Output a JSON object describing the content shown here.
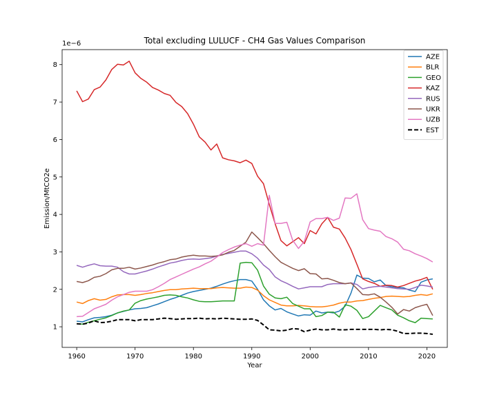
{
  "chart_data": {
    "type": "line",
    "title": "Total excluding LULUCF - CH4 Gas Values Comparison",
    "xlabel": "Year",
    "ylabel": "Emission/MtCO2e",
    "scale_label": "1e−6",
    "xlim": [
      1957.5,
      2023.5
    ],
    "ylim": [
      0.45,
      8.4
    ],
    "xticks": [
      1960,
      1970,
      1980,
      1990,
      2000,
      2010,
      2020
    ],
    "yticks": [
      1,
      2,
      3,
      4,
      5,
      6,
      7,
      8
    ],
    "legend_position": "top-right",
    "x": [
      1960,
      1961,
      1962,
      1963,
      1964,
      1965,
      1966,
      1967,
      1968,
      1969,
      1970,
      1971,
      1972,
      1973,
      1974,
      1975,
      1976,
      1977,
      1978,
      1979,
      1980,
      1981,
      1982,
      1983,
      1984,
      1985,
      1986,
      1987,
      1988,
      1989,
      1990,
      1991,
      1992,
      1993,
      1994,
      1995,
      1996,
      1997,
      1998,
      1999,
      2000,
      2001,
      2002,
      2003,
      2004,
      2005,
      2006,
      2007,
      2008,
      2009,
      2010,
      2011,
      2012,
      2013,
      2014,
      2015,
      2016,
      2017,
      2018,
      2019,
      2020,
      2021
    ],
    "series": [
      {
        "name": "AZE",
        "color": "#1f77b4",
        "dashed": false,
        "values": [
          1.15,
          1.13,
          1.19,
          1.24,
          1.25,
          1.27,
          1.31,
          1.37,
          1.41,
          1.45,
          1.48,
          1.49,
          1.51,
          1.56,
          1.61,
          1.67,
          1.73,
          1.78,
          1.84,
          1.9,
          1.94,
          1.97,
          2.0,
          2.03,
          2.08,
          2.14,
          2.19,
          2.23,
          2.26,
          2.26,
          2.22,
          2.0,
          1.72,
          1.56,
          1.45,
          1.49,
          1.4,
          1.34,
          1.29,
          1.32,
          1.31,
          1.42,
          1.37,
          1.39,
          1.37,
          1.42,
          1.55,
          1.9,
          2.38,
          2.3,
          2.29,
          2.2,
          2.25,
          2.1,
          2.07,
          2.05,
          2.04,
          1.98,
          1.94,
          2.19,
          2.25,
          2.28
        ]
      },
      {
        "name": "BLR",
        "color": "#ff7f0e",
        "dashed": false,
        "values": [
          1.66,
          1.62,
          1.7,
          1.75,
          1.71,
          1.73,
          1.8,
          1.85,
          1.86,
          1.86,
          1.84,
          1.86,
          1.89,
          1.91,
          1.94,
          1.97,
          1.99,
          1.99,
          2.01,
          2.02,
          2.03,
          2.02,
          2.02,
          2.02,
          2.04,
          2.05,
          2.04,
          2.03,
          2.03,
          2.06,
          2.05,
          1.98,
          1.83,
          1.72,
          1.65,
          1.58,
          1.56,
          1.56,
          1.57,
          1.56,
          1.54,
          1.53,
          1.53,
          1.55,
          1.58,
          1.63,
          1.66,
          1.66,
          1.69,
          1.7,
          1.73,
          1.76,
          1.78,
          1.81,
          1.82,
          1.81,
          1.8,
          1.81,
          1.84,
          1.86,
          1.84,
          1.88
        ]
      },
      {
        "name": "GEO",
        "color": "#2ca02c",
        "dashed": false,
        "values": [
          1.08,
          1.07,
          1.12,
          1.16,
          1.2,
          1.24,
          1.3,
          1.37,
          1.42,
          1.45,
          1.63,
          1.7,
          1.74,
          1.77,
          1.8,
          1.84,
          1.85,
          1.84,
          1.8,
          1.77,
          1.72,
          1.68,
          1.67,
          1.67,
          1.68,
          1.69,
          1.69,
          1.69,
          2.7,
          2.72,
          2.71,
          2.51,
          2.09,
          1.87,
          1.77,
          1.75,
          1.79,
          1.62,
          1.55,
          1.48,
          1.48,
          1.27,
          1.3,
          1.39,
          1.39,
          1.26,
          1.59,
          1.55,
          1.44,
          1.22,
          1.27,
          1.42,
          1.57,
          1.51,
          1.45,
          1.31,
          1.24,
          1.16,
          1.11,
          1.23,
          1.22,
          1.21
        ]
      },
      {
        "name": "KAZ",
        "color": "#d62728",
        "dashed": false,
        "values": [
          7.3,
          7.01,
          7.08,
          7.33,
          7.4,
          7.59,
          7.87,
          8.01,
          7.99,
          8.09,
          7.78,
          7.63,
          7.53,
          7.39,
          7.32,
          7.23,
          7.18,
          6.99,
          6.88,
          6.69,
          6.41,
          6.07,
          5.93,
          5.72,
          5.88,
          5.51,
          5.46,
          5.43,
          5.38,
          5.45,
          5.36,
          5.02,
          4.82,
          4.27,
          3.75,
          3.3,
          3.16,
          3.27,
          3.38,
          3.22,
          3.57,
          3.48,
          3.75,
          3.92,
          3.66,
          3.61,
          3.37,
          3.06,
          2.67,
          2.28,
          2.21,
          2.16,
          2.08,
          2.11,
          2.1,
          2.06,
          2.1,
          2.16,
          2.22,
          2.26,
          2.32,
          2.0
        ]
      },
      {
        "name": "RUS",
        "color": "#9467bd",
        "dashed": false,
        "values": [
          2.64,
          2.59,
          2.64,
          2.68,
          2.63,
          2.62,
          2.62,
          2.59,
          2.47,
          2.41,
          2.41,
          2.45,
          2.49,
          2.54,
          2.6,
          2.65,
          2.7,
          2.73,
          2.77,
          2.8,
          2.81,
          2.8,
          2.82,
          2.84,
          2.89,
          2.93,
          2.96,
          2.99,
          3.02,
          3.02,
          2.95,
          2.83,
          2.65,
          2.53,
          2.33,
          2.23,
          2.16,
          2.08,
          2.01,
          2.04,
          2.07,
          2.07,
          2.07,
          2.13,
          2.15,
          2.15,
          2.15,
          2.17,
          2.13,
          2.01,
          2.05,
          2.07,
          2.08,
          2.06,
          2.04,
          2.02,
          2.01,
          2.0,
          2.05,
          2.11,
          2.09,
          2.06
        ]
      },
      {
        "name": "UKR",
        "color": "#8c564b",
        "dashed": false,
        "values": [
          2.21,
          2.18,
          2.23,
          2.32,
          2.35,
          2.42,
          2.52,
          2.56,
          2.56,
          2.59,
          2.54,
          2.57,
          2.61,
          2.65,
          2.7,
          2.74,
          2.79,
          2.81,
          2.86,
          2.89,
          2.91,
          2.89,
          2.89,
          2.88,
          2.89,
          2.92,
          2.99,
          3.04,
          3.15,
          3.26,
          3.53,
          3.38,
          3.22,
          3.04,
          2.87,
          2.72,
          2.64,
          2.56,
          2.5,
          2.55,
          2.42,
          2.41,
          2.28,
          2.29,
          2.24,
          2.18,
          2.15,
          2.17,
          2.02,
          1.86,
          1.85,
          1.88,
          1.79,
          1.66,
          1.52,
          1.34,
          1.46,
          1.42,
          1.51,
          1.56,
          1.6,
          1.3
        ]
      },
      {
        "name": "UZB",
        "color": "#e377c2",
        "dashed": false,
        "values": [
          1.27,
          1.28,
          1.38,
          1.48,
          1.54,
          1.6,
          1.71,
          1.8,
          1.86,
          1.92,
          1.95,
          1.95,
          1.95,
          1.99,
          2.07,
          2.16,
          2.26,
          2.33,
          2.4,
          2.47,
          2.54,
          2.6,
          2.68,
          2.75,
          2.86,
          2.98,
          3.06,
          3.13,
          3.18,
          3.22,
          3.15,
          3.22,
          3.18,
          4.51,
          3.76,
          3.76,
          3.79,
          3.31,
          3.09,
          3.28,
          3.8,
          3.89,
          3.89,
          3.92,
          3.84,
          3.9,
          4.44,
          4.43,
          4.55,
          3.86,
          3.62,
          3.58,
          3.55,
          3.41,
          3.35,
          3.26,
          3.07,
          3.03,
          2.95,
          2.89,
          2.82,
          2.73
        ]
      },
      {
        "name": "EST",
        "color": "#000000",
        "dashed": true,
        "values": [
          1.08,
          1.07,
          1.1,
          1.16,
          1.11,
          1.12,
          1.15,
          1.19,
          1.19,
          1.19,
          1.16,
          1.19,
          1.19,
          1.19,
          1.21,
          1.23,
          1.22,
          1.2,
          1.21,
          1.22,
          1.22,
          1.23,
          1.21,
          1.22,
          1.21,
          1.23,
          1.22,
          1.21,
          1.2,
          1.2,
          1.21,
          1.17,
          1.05,
          0.92,
          0.91,
          0.89,
          0.91,
          0.95,
          0.94,
          0.87,
          0.91,
          0.94,
          0.92,
          0.92,
          0.94,
          0.92,
          0.92,
          0.93,
          0.93,
          0.93,
          0.93,
          0.93,
          0.92,
          0.93,
          0.92,
          0.88,
          0.82,
          0.82,
          0.83,
          0.83,
          0.82,
          0.8
        ]
      }
    ]
  }
}
